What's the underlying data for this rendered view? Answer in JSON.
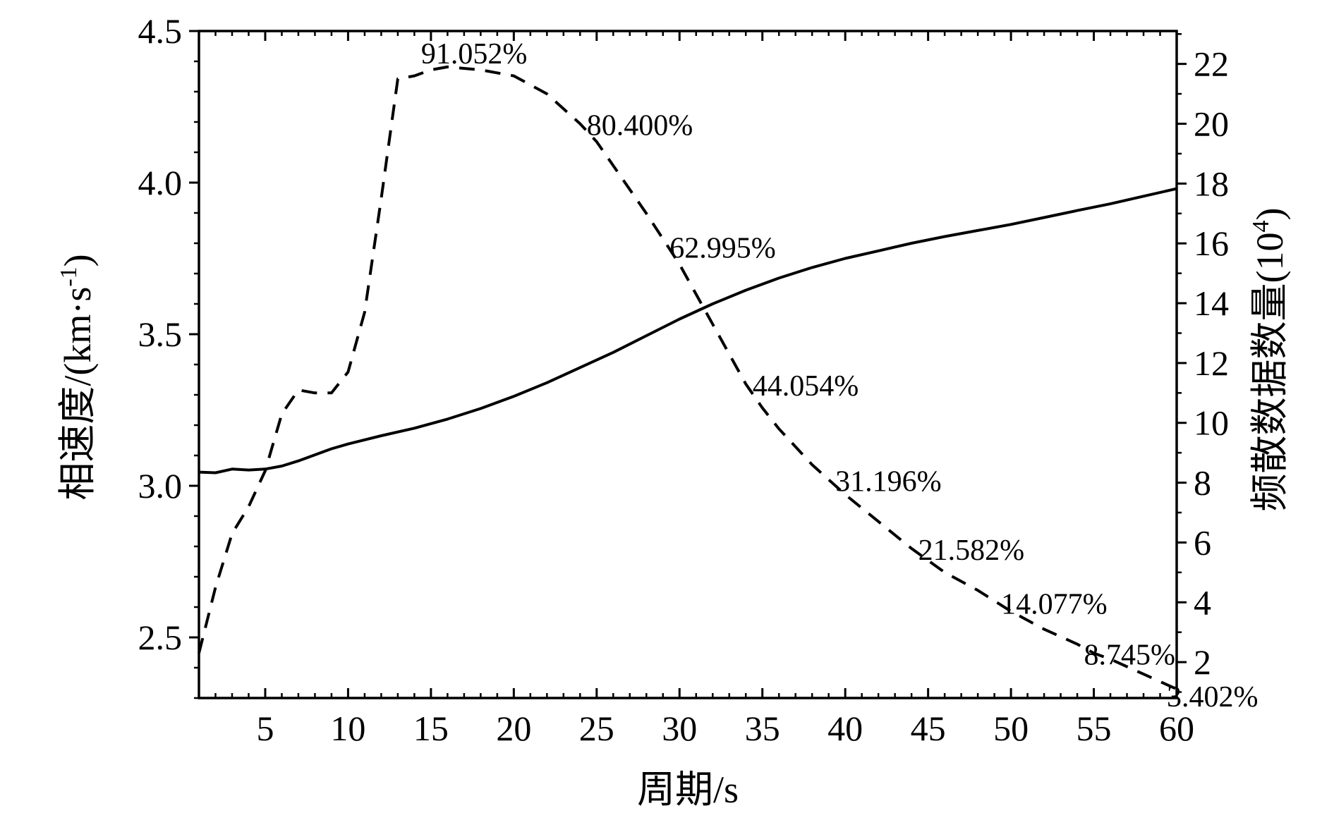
{
  "chart_data": {
    "type": "line",
    "xlabel": "周期/s",
    "ylabel_left_main": "相速度/(km·s",
    "ylabel_left_sup": "-1",
    "ylabel_left_end": ")",
    "ylabel_right_main": "频散数据数量(10",
    "ylabel_right_sup": "4",
    "ylabel_right_end": ")",
    "xlim": [
      1,
      60
    ],
    "ylim_left": [
      2.3,
      4.5
    ],
    "ylim_right": [
      0.8,
      23.1
    ],
    "x_ticks": [
      5,
      10,
      15,
      20,
      25,
      30,
      35,
      40,
      45,
      50,
      55,
      60
    ],
    "x_tick_labels": [
      "5",
      "10",
      "15",
      "20",
      "25",
      "30",
      "35",
      "40",
      "45",
      "50",
      "55",
      "60"
    ],
    "y_left_ticks": [
      2.5,
      3.0,
      3.5,
      4.0,
      4.5
    ],
    "y_left_tick_labels": [
      "2.5",
      "3.0",
      "3.5",
      "4.0",
      "4.5"
    ],
    "y_right_ticks": [
      2,
      4,
      6,
      8,
      10,
      12,
      14,
      16,
      18,
      20,
      22
    ],
    "y_right_tick_labels": [
      "2",
      "4",
      "6",
      "8",
      "10",
      "12",
      "14",
      "16",
      "18",
      "20",
      "22"
    ],
    "grid": false,
    "series": [
      {
        "axis": "left",
        "style": "solid",
        "x": [
          1,
          2,
          3,
          4,
          5,
          6,
          7,
          8,
          9,
          10,
          12,
          14,
          16,
          18,
          20,
          22,
          24,
          26,
          28,
          30,
          32,
          34,
          36,
          38,
          40,
          42,
          44,
          46,
          48,
          50,
          52,
          54,
          56,
          58,
          60
        ],
        "values": [
          3.045,
          3.043,
          3.055,
          3.052,
          3.055,
          3.065,
          3.082,
          3.102,
          3.122,
          3.138,
          3.165,
          3.19,
          3.22,
          3.255,
          3.295,
          3.34,
          3.39,
          3.44,
          3.495,
          3.55,
          3.6,
          3.645,
          3.685,
          3.72,
          3.75,
          3.775,
          3.8,
          3.822,
          3.842,
          3.862,
          3.885,
          3.908,
          3.93,
          3.955,
          3.98
        ]
      },
      {
        "axis": "right",
        "style": "dashed",
        "x": [
          1,
          2,
          3,
          4,
          5,
          6,
          7,
          8,
          9,
          10,
          11,
          12,
          13,
          14,
          15,
          16,
          18,
          20,
          22,
          24,
          25,
          26,
          28,
          30,
          32,
          34,
          35,
          36,
          38,
          40,
          42,
          44,
          45,
          46,
          48,
          50,
          52,
          54,
          55,
          56,
          58,
          60
        ],
        "values": [
          2.3,
          4.5,
          6.3,
          7.2,
          8.4,
          10.3,
          11.1,
          11.0,
          11.0,
          11.7,
          13.7,
          17.5,
          21.5,
          21.6,
          21.8,
          21.9,
          21.8,
          21.6,
          21.0,
          20.0,
          19.4,
          18.6,
          17.0,
          15.3,
          13.3,
          11.3,
          10.5,
          9.8,
          8.6,
          7.6,
          6.7,
          5.8,
          5.4,
          5.0,
          4.4,
          3.7,
          3.1,
          2.6,
          2.3,
          2.1,
          1.6,
          1.1
        ]
      }
    ],
    "annotations": [
      {
        "text": "91.052%",
        "x": 15,
        "y_right": 22.3
      },
      {
        "text": "80.400%",
        "x": 25,
        "y_right": 19.9
      },
      {
        "text": "62.995%",
        "x": 30,
        "y_right": 15.8
      },
      {
        "text": "44.054%",
        "x": 35,
        "y_right": 11.2
      },
      {
        "text": "31.196%",
        "x": 40,
        "y_right": 8.0
      },
      {
        "text": "21.582%",
        "x": 45,
        "y_right": 5.7
      },
      {
        "text": "14.077%",
        "x": 50,
        "y_right": 3.9
      },
      {
        "text": "8.745%",
        "x": 55,
        "y_right": 2.2
      },
      {
        "text": "3.402%",
        "x": 60,
        "y_right": 0.8
      }
    ]
  }
}
